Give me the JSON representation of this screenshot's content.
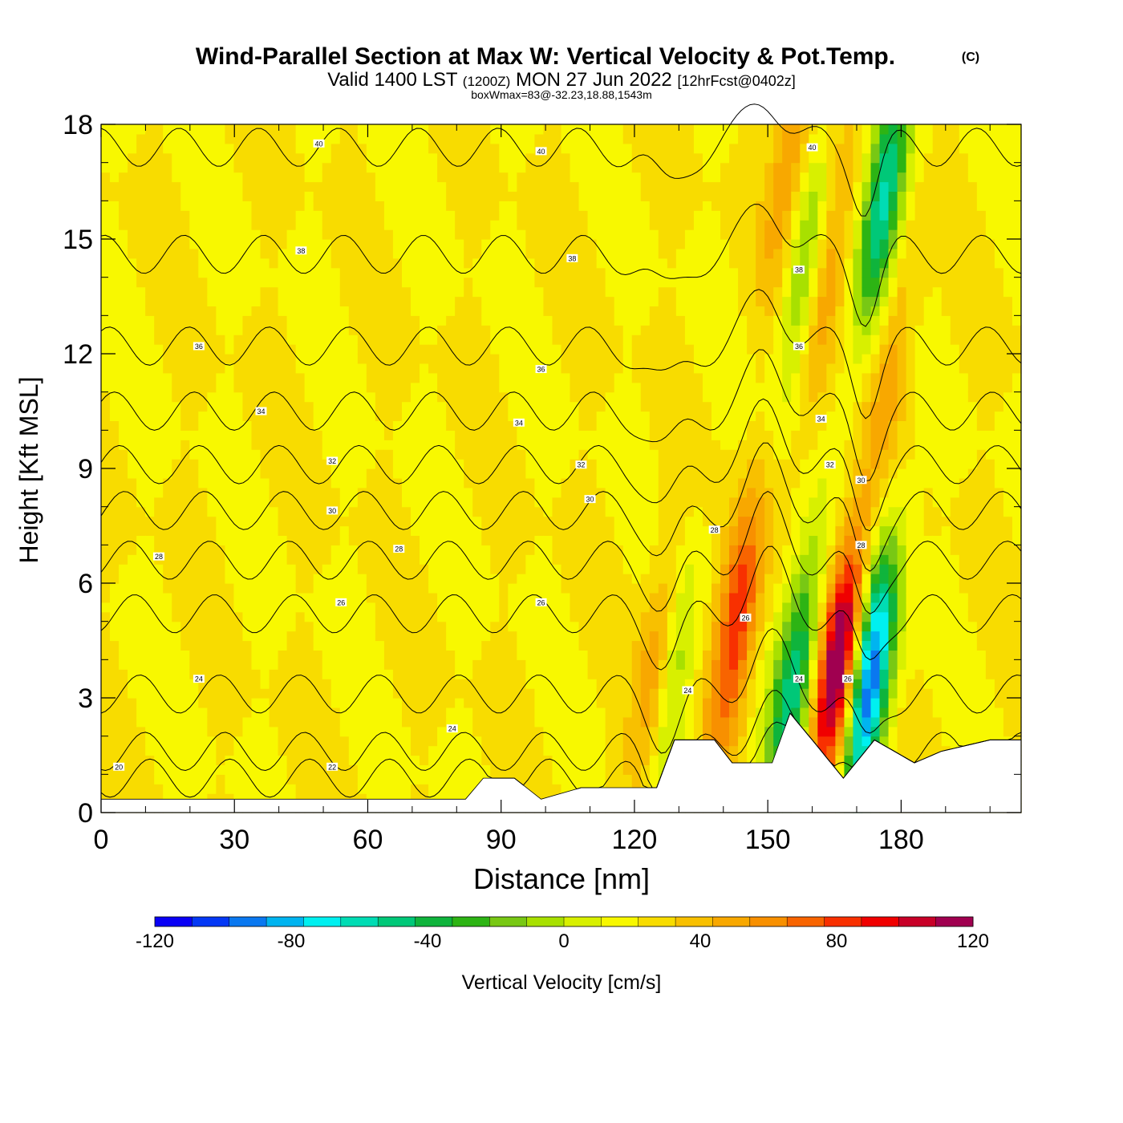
{
  "header": {
    "title": "Wind-Parallel Section at Max W: Vertical Velocity & Pot.Temp.",
    "copyright": "(C)",
    "valid_prefix": "Valid 1400 LST",
    "valid_utc": "(1200Z)",
    "valid_date": "MON 27 Jun 2022",
    "forecast": "[12hrFcst@0402z]",
    "box_info": "boxWmax=83@-32.23,18.88,1543m"
  },
  "chart_data": {
    "type": "heatmap",
    "xlabel": "Distance [nm]",
    "ylabel": "Height [Kft MSL]",
    "xlim": [
      0,
      207
    ],
    "ylim": [
      0,
      18
    ],
    "x_ticks": [
      0,
      30,
      60,
      90,
      120,
      150,
      180
    ],
    "y_ticks": [
      0,
      3,
      6,
      9,
      12,
      15,
      18
    ],
    "colorbar": {
      "label": "Vertical Velocity [cm/s]",
      "range": [
        -120,
        120
      ],
      "step": 10,
      "tick_labels": [
        -120,
        -80,
        -40,
        0,
        40,
        80,
        120
      ],
      "colors": [
        "#0a00f5",
        "#0438f5",
        "#0a78f0",
        "#00b4f0",
        "#00f0f0",
        "#00dcb4",
        "#00c878",
        "#0fb43c",
        "#2db414",
        "#78c814",
        "#a8e000",
        "#d8f000",
        "#f8f800",
        "#f8dc00",
        "#f8c000",
        "#f8a800",
        "#f89000",
        "#f86400",
        "#f83000",
        "#f00000",
        "#c80028",
        "#a00050"
      ]
    },
    "background_w": 0,
    "updrafts": [
      {
        "x": 125,
        "z": 3.5,
        "w": 45
      },
      {
        "x": 143,
        "z": 5.0,
        "w": 62
      },
      {
        "x": 166,
        "z": 4.0,
        "w": 100
      },
      {
        "x": 163,
        "z": 14.0,
        "w": 35
      },
      {
        "x": 155,
        "z": 17.0,
        "w": 32
      },
      {
        "x": 178,
        "z": 12.0,
        "w": 25
      }
    ],
    "downdrafts": [
      {
        "x": 173,
        "z": 3.5,
        "w": -112
      },
      {
        "x": 156,
        "z": 3.5,
        "w": -70
      },
      {
        "x": 128,
        "z": 3.5,
        "w": -42
      },
      {
        "x": 158,
        "z": 14.0,
        "w": -38
      },
      {
        "x": 176,
        "z": 16.0,
        "w": -75
      }
    ],
    "terrain": [
      [
        0,
        0.35
      ],
      [
        82,
        0.35
      ],
      [
        86,
        0.9
      ],
      [
        93,
        0.9
      ],
      [
        99,
        0.35
      ],
      [
        108,
        0.65
      ],
      [
        125,
        0.65
      ],
      [
        129,
        1.9
      ],
      [
        138,
        1.9
      ],
      [
        142,
        1.3
      ],
      [
        151,
        1.3
      ],
      [
        155,
        2.6
      ],
      [
        160,
        1.9
      ],
      [
        167,
        0.9
      ],
      [
        174,
        1.9
      ],
      [
        183,
        1.3
      ],
      [
        189,
        1.6
      ],
      [
        200,
        1.9
      ],
      [
        207,
        1.9
      ]
    ],
    "theta_contours": [
      20,
      22,
      24,
      26,
      28,
      30,
      32,
      34,
      36,
      38,
      40
    ],
    "contour_labels": [
      {
        "text": "40",
        "x": 49,
        "z": 17.5
      },
      {
        "text": "40",
        "x": 99,
        "z": 17.3
      },
      {
        "text": "40",
        "x": 160,
        "z": 17.4
      },
      {
        "text": "38",
        "x": 45,
        "z": 14.7
      },
      {
        "text": "38",
        "x": 106,
        "z": 14.5
      },
      {
        "text": "38",
        "x": 157,
        "z": 14.2
      },
      {
        "text": "36",
        "x": 22,
        "z": 12.2
      },
      {
        "text": "36",
        "x": 99,
        "z": 11.6
      },
      {
        "text": "36",
        "x": 157,
        "z": 12.2
      },
      {
        "text": "34",
        "x": 36,
        "z": 10.5
      },
      {
        "text": "34",
        "x": 94,
        "z": 10.2
      },
      {
        "text": "34",
        "x": 162,
        "z": 10.3
      },
      {
        "text": "32",
        "x": 52,
        "z": 9.2
      },
      {
        "text": "32",
        "x": 108,
        "z": 9.1
      },
      {
        "text": "32",
        "x": 164,
        "z": 9.1
      },
      {
        "text": "30",
        "x": 52,
        "z": 7.9
      },
      {
        "text": "30",
        "x": 110,
        "z": 8.2
      },
      {
        "text": "30",
        "x": 171,
        "z": 8.7
      },
      {
        "text": "28",
        "x": 13,
        "z": 6.7
      },
      {
        "text": "28",
        "x": 67,
        "z": 6.9
      },
      {
        "text": "28",
        "x": 138,
        "z": 7.4
      },
      {
        "text": "28",
        "x": 171,
        "z": 7.0
      },
      {
        "text": "26",
        "x": 54,
        "z": 5.5
      },
      {
        "text": "26",
        "x": 99,
        "z": 5.5
      },
      {
        "text": "26",
        "x": 145,
        "z": 5.1
      },
      {
        "text": "26",
        "x": 168,
        "z": 3.5
      },
      {
        "text": "24",
        "x": 22,
        "z": 3.5
      },
      {
        "text": "24",
        "x": 79,
        "z": 2.2
      },
      {
        "text": "24",
        "x": 132,
        "z": 3.2
      },
      {
        "text": "24",
        "x": 157,
        "z": 3.5
      },
      {
        "text": "20",
        "x": 4,
        "z": 1.2
      },
      {
        "text": "22",
        "x": 52,
        "z": 1.2
      }
    ]
  }
}
